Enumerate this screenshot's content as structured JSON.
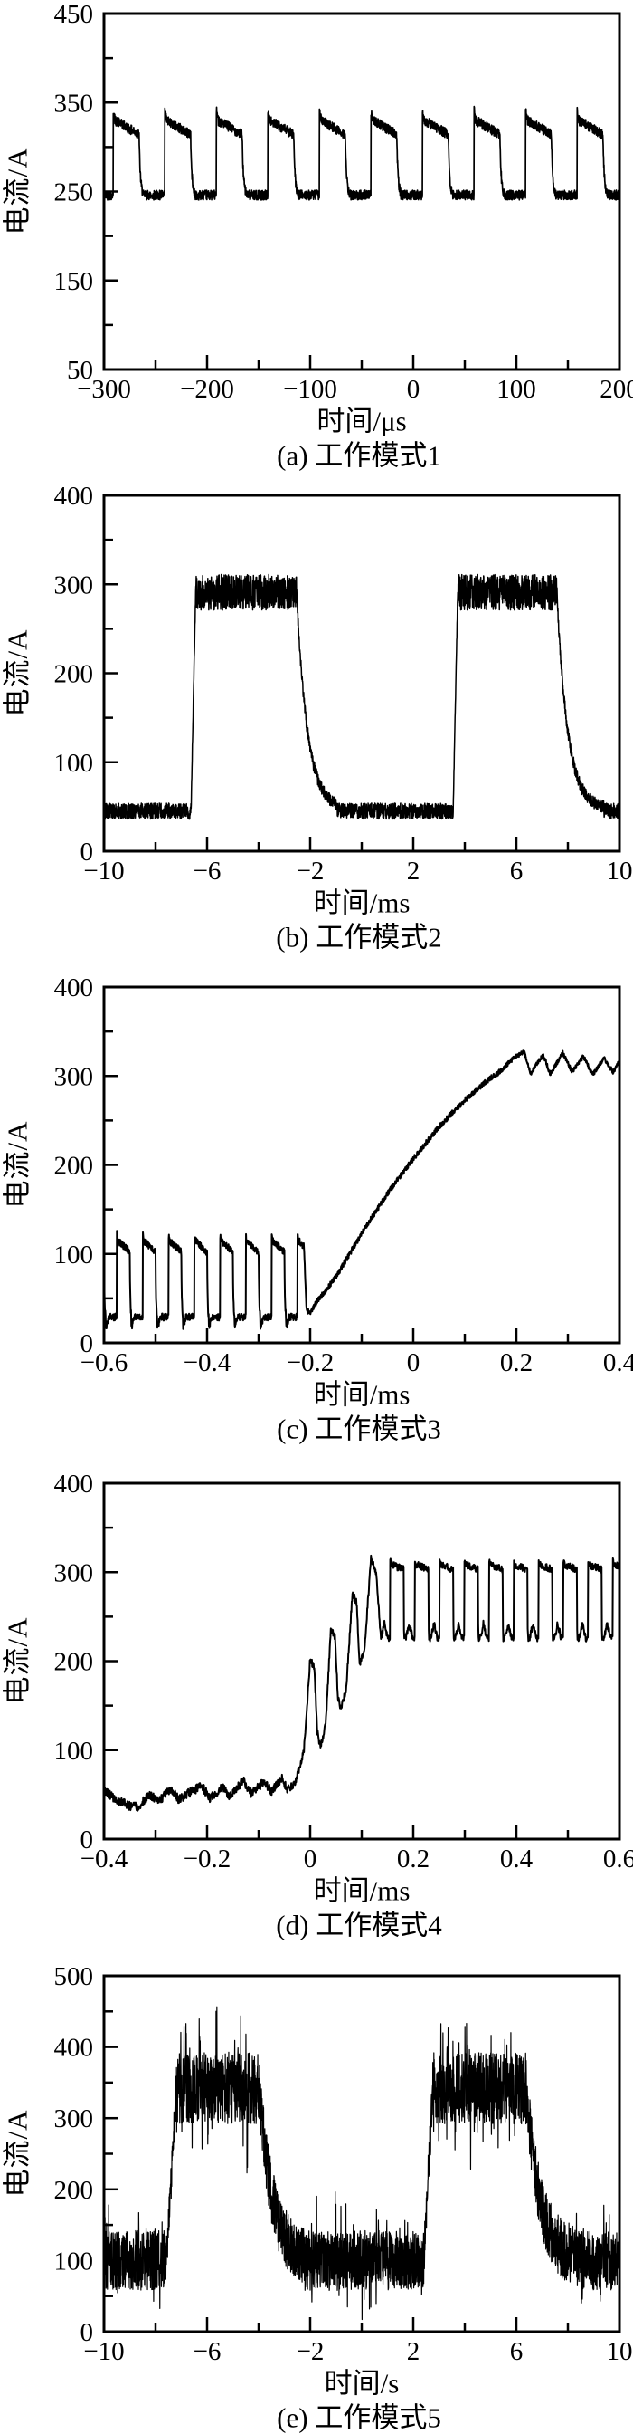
{
  "page": {
    "background": "#ffffff",
    "foreground": "#000000"
  },
  "chart_data": [
    {
      "id": "a",
      "type": "line",
      "caption": "(a) 工作模式1",
      "xlabel": "时间/μs",
      "ylabel": "电流/A",
      "xlim": [
        -300,
        200
      ],
      "ylim": [
        50,
        450
      ],
      "xticks": [
        {
          "v": -300,
          "label": "−300"
        },
        {
          "v": -200,
          "label": "−200"
        },
        {
          "v": -100,
          "label": "−100"
        },
        {
          "v": 0,
          "label": "0"
        },
        {
          "v": 100,
          "label": "100"
        },
        {
          "v": 200,
          "label": "200"
        }
      ],
      "xminor": [
        -250,
        -150,
        -50,
        50,
        150
      ],
      "yticks": [
        {
          "v": 50,
          "label": "50"
        },
        {
          "v": 150,
          "label": "150"
        },
        {
          "v": 250,
          "label": "250"
        },
        {
          "v": 350,
          "label": "350"
        },
        {
          "v": 450,
          "label": "450"
        }
      ],
      "yminor": [
        100,
        200,
        300,
        400
      ],
      "grid": false,
      "legend": null,
      "line_color": "#000000",
      "stroke_width": 1.7,
      "samples": 2600,
      "signal_summary": "periodic square wave: low ~246 A, high ~331 A drooping to ~314 A, period ~50 us, duty ~0.5",
      "segments": [
        {
          "type": "square",
          "t0": -300,
          "t1": 200,
          "anchor": -291,
          "period": 50,
          "duty": 0.5,
          "low": 246,
          "high": 331,
          "droop": 17,
          "overshoot": 10,
          "fall_tail": 0.16,
          "noise": 5.5
        }
      ]
    },
    {
      "id": "b",
      "type": "line",
      "caption": "(b) 工作模式2",
      "xlabel": "时间/ms",
      "ylabel": "电流/A",
      "xlim": [
        -10,
        10
      ],
      "ylim": [
        0,
        400
      ],
      "xticks": [
        {
          "v": -10,
          "label": "−10"
        },
        {
          "v": -6,
          "label": "−6"
        },
        {
          "v": -2,
          "label": "−2"
        },
        {
          "v": 2,
          "label": "2"
        },
        {
          "v": 6,
          "label": "6"
        },
        {
          "v": 10,
          "label": "10"
        }
      ],
      "xminor": [
        -8,
        -4,
        0,
        4,
        8
      ],
      "yticks": [
        {
          "v": 0,
          "label": "0"
        },
        {
          "v": 100,
          "label": "100"
        },
        {
          "v": 200,
          "label": "200"
        },
        {
          "v": 300,
          "label": "300"
        },
        {
          "v": 400,
          "label": "400"
        }
      ],
      "yminor": [
        50,
        150,
        250,
        350
      ],
      "grid": false,
      "legend": null,
      "line_color": "#000000",
      "stroke_width": 1.5,
      "samples": 2800,
      "signal_summary": "pulse train: baseline ~45 A, noisy top ~290 A (265-310 A), rise at -6.6 and 3.6 ms, exponential decay after -2.5 and 7.6 ms",
      "segments": [
        {
          "type": "flat",
          "t0": -10,
          "t1": -6.62,
          "y": 45,
          "noise": 9
        },
        {
          "type": "ramp",
          "t0": -6.62,
          "t1": -6.44,
          "y0": 48,
          "y1": 296,
          "noise": 5
        },
        {
          "type": "flat",
          "t0": -6.44,
          "t1": -2.52,
          "y": 291,
          "noise": 20
        },
        {
          "type": "decay",
          "t0": -2.52,
          "t1": -0.95,
          "y0": 285,
          "y1": 47,
          "tau": 0.42,
          "noise": 7
        },
        {
          "type": "flat",
          "t0": -0.95,
          "t1": 3.55,
          "y": 45,
          "noise": 9
        },
        {
          "type": "ramp",
          "t0": 3.55,
          "t1": 3.73,
          "y0": 48,
          "y1": 296,
          "noise": 5
        },
        {
          "type": "flat",
          "t0": 3.73,
          "t1": 7.58,
          "y": 291,
          "noise": 20
        },
        {
          "type": "decay",
          "t0": 7.58,
          "t1": 9.4,
          "y0": 285,
          "y1": 47,
          "tau": 0.42,
          "noise": 7
        },
        {
          "type": "flat",
          "t0": 9.4,
          "t1": 10,
          "y": 45,
          "noise": 9
        }
      ]
    },
    {
      "id": "c",
      "type": "line",
      "caption": "(c) 工作模式3",
      "xlabel": "时间/ms",
      "ylabel": "电流/A",
      "xlim": [
        -0.6,
        0.4
      ],
      "ylim": [
        0,
        400
      ],
      "xticks": [
        {
          "v": -0.6,
          "label": "−0.6"
        },
        {
          "v": -0.4,
          "label": "−0.4"
        },
        {
          "v": -0.2,
          "label": "−0.2"
        },
        {
          "v": 0,
          "label": "0"
        },
        {
          "v": 0.2,
          "label": "0.2"
        },
        {
          "v": 0.4,
          "label": "0.4"
        }
      ],
      "xminor": [
        -0.5,
        -0.3,
        -0.1,
        0.1,
        0.3
      ],
      "yticks": [
        {
          "v": 0,
          "label": "0"
        },
        {
          "v": 100,
          "label": "100"
        },
        {
          "v": 200,
          "label": "200"
        },
        {
          "v": 300,
          "label": "300"
        },
        {
          "v": 400,
          "label": "400"
        }
      ],
      "yminor": [
        50,
        150,
        250,
        350
      ],
      "grid": false,
      "legend": null,
      "line_color": "#000000",
      "stroke_width": 2,
      "samples": 2000,
      "signal_summary": "square wave 29-116 A (period 0.05 ms) until -0.2 ms, then monotonic rise to ~320 A saturating near 0.2 ms with ~±12 A ripple",
      "segments": [
        {
          "type": "square",
          "t0": -0.6,
          "t1": -0.212,
          "anchor": -0.575,
          "period": 0.05,
          "duty": 0.5,
          "low": 29,
          "high": 116,
          "droop": 14,
          "overshoot": 7,
          "fall_tail": 0.12,
          "low_dip": 13,
          "noise": 4
        },
        {
          "type": "points",
          "t0": -0.212,
          "t1": 0.17,
          "noise": 3,
          "pts": [
            [
              -0.212,
              108
            ],
            [
              -0.207,
              36
            ],
            [
              -0.2,
              34
            ],
            [
              -0.19,
              44
            ],
            [
              -0.15,
              74
            ],
            [
              -0.1,
              123
            ],
            [
              -0.05,
              168
            ],
            [
              0,
              207
            ],
            [
              0.05,
              243
            ],
            [
              0.1,
              273
            ],
            [
              0.14,
              293
            ],
            [
              0.17,
              306
            ]
          ]
        },
        {
          "type": "points",
          "t0": 0.17,
          "t1": 0.4,
          "noise": 2.5,
          "pts": [
            [
              0.17,
              306
            ],
            [
              0.195,
              320
            ],
            [
              0.215,
              327
            ],
            [
              0.228,
              303
            ],
            [
              0.252,
              324
            ],
            [
              0.266,
              302
            ],
            [
              0.29,
              326
            ],
            [
              0.308,
              305
            ],
            [
              0.33,
              322
            ],
            [
              0.348,
              301
            ],
            [
              0.37,
              320
            ],
            [
              0.388,
              304
            ],
            [
              0.4,
              317
            ]
          ]
        }
      ]
    },
    {
      "id": "d",
      "type": "line",
      "caption": "(d) 工作模式4",
      "xlabel": "时间/ms",
      "ylabel": "电流/A",
      "xlim": [
        -0.4,
        0.6
      ],
      "ylim": [
        0,
        400
      ],
      "xticks": [
        {
          "v": -0.4,
          "label": "−0.4"
        },
        {
          "v": -0.2,
          "label": "−0.2"
        },
        {
          "v": 0,
          "label": "0"
        },
        {
          "v": 0.2,
          "label": "0.2"
        },
        {
          "v": 0.4,
          "label": "0.4"
        },
        {
          "v": 0.6,
          "label": "0.6"
        }
      ],
      "xminor": [
        -0.3,
        -0.1,
        0.1,
        0.3,
        0.5
      ],
      "yticks": [
        {
          "v": 0,
          "label": "0"
        },
        {
          "v": 100,
          "label": "100"
        },
        {
          "v": 200,
          "label": "200"
        },
        {
          "v": 300,
          "label": "300"
        },
        {
          "v": 400,
          "label": "400"
        }
      ],
      "yminor": [
        50,
        150,
        250,
        350
      ],
      "grid": false,
      "legend": null,
      "line_color": "#000000",
      "stroke_width": 2,
      "samples": 1500,
      "signal_summary": "noisy ~40-68 A baseline before 0, growing pulses peaking 203/236/276/315 A between 0 and 0.14 ms, then steady oscillation 226-309 A, period ~0.048 ms",
      "segments": [
        {
          "type": "points",
          "t0": -0.4,
          "t1": -0.045,
          "noise": 5,
          "pts": [
            [
              -0.4,
              54
            ],
            [
              -0.38,
              46
            ],
            [
              -0.355,
              38
            ],
            [
              -0.335,
              36
            ],
            [
              -0.31,
              50
            ],
            [
              -0.295,
              42
            ],
            [
              -0.27,
              56
            ],
            [
              -0.255,
              44
            ],
            [
              -0.235,
              52
            ],
            [
              -0.21,
              60
            ],
            [
              -0.195,
              46
            ],
            [
              -0.17,
              58
            ],
            [
              -0.155,
              48
            ],
            [
              -0.13,
              66
            ],
            [
              -0.115,
              52
            ],
            [
              -0.09,
              64
            ],
            [
              -0.075,
              54
            ],
            [
              -0.055,
              68
            ],
            [
              -0.045,
              56
            ]
          ]
        },
        {
          "type": "points",
          "t0": -0.045,
          "t1": 0.137,
          "noise": 4,
          "pts": [
            [
              -0.045,
              56
            ],
            [
              -0.03,
              62
            ],
            [
              -0.022,
              78
            ],
            [
              -0.012,
              100
            ],
            [
              -0.006,
              150
            ],
            [
              0,
              203
            ],
            [
              0.008,
              192
            ],
            [
              0.014,
              120
            ],
            [
              0.02,
              103
            ],
            [
              0.03,
              128
            ],
            [
              0.04,
              236
            ],
            [
              0.048,
              228
            ],
            [
              0.054,
              158
            ],
            [
              0.06,
              146
            ],
            [
              0.07,
              170
            ],
            [
              0.082,
              276
            ],
            [
              0.09,
              266
            ],
            [
              0.096,
              196
            ],
            [
              0.105,
              210
            ],
            [
              0.118,
              315
            ],
            [
              0.128,
              300
            ],
            [
              0.137,
              228
            ]
          ]
        },
        {
          "type": "square",
          "t0": 0.137,
          "t1": 0.6,
          "anchor": 0.155,
          "period": 0.048,
          "duty": 0.55,
          "low": 226,
          "high": 309,
          "droop": 6,
          "overshoot": 7,
          "fall_tail": 0.05,
          "w_bounce": 16,
          "noise": 4
        }
      ]
    },
    {
      "id": "e",
      "type": "line",
      "caption": "(e) 工作模式5",
      "xlabel": "时间/s",
      "ylabel": "电流/A",
      "xlim": [
        -10,
        10
      ],
      "ylim": [
        0,
        500
      ],
      "xticks": [
        {
          "v": -10,
          "label": "−10"
        },
        {
          "v": -6,
          "label": "−6"
        },
        {
          "v": -2,
          "label": "−2"
        },
        {
          "v": 2,
          "label": "2"
        },
        {
          "v": 6,
          "label": "6"
        },
        {
          "v": 10,
          "label": "10"
        }
      ],
      "xminor": [
        -8,
        -4,
        0,
        4,
        8
      ],
      "yticks": [
        {
          "v": 0,
          "label": "0"
        },
        {
          "v": 100,
          "label": "100"
        },
        {
          "v": 200,
          "label": "200"
        },
        {
          "v": 300,
          "label": "300"
        },
        {
          "v": 400,
          "label": "400"
        },
        {
          "v": 500,
          "label": "500"
        }
      ],
      "yminor": [
        50,
        150,
        250,
        350,
        450
      ],
      "grid": false,
      "legend": null,
      "line_color": "#000000",
      "stroke_width": 1.2,
      "samples": 3000,
      "signal_summary": "very noisy square wave: low band ~60-150 A (center ~100 A), high band ~290-430 A (center ~342 A); rises at -7.5 and 2.4 s, decays after -4 and 6.4 s",
      "segments": [
        {
          "type": "flat",
          "t0": -10,
          "t1": -7.55,
          "y": 100,
          "noise": 42,
          "spike_p": 0.1,
          "spike": 1.5
        },
        {
          "type": "ramp",
          "t0": -7.55,
          "t1": -7.2,
          "y0": 110,
          "y1": 335,
          "noise": 32
        },
        {
          "type": "flat",
          "t0": -7.2,
          "t1": -3.95,
          "y": 342,
          "noise": 50,
          "spike_p": 0.12,
          "spike": 1.6
        },
        {
          "type": "decay",
          "t0": -3.95,
          "t1": -2.25,
          "y0": 330,
          "y1": 102,
          "tau": 0.5,
          "noise": 42
        },
        {
          "type": "flat",
          "t0": -2.25,
          "t1": 2.42,
          "y": 100,
          "noise": 42,
          "spike_p": 0.1,
          "spike": 1.5
        },
        {
          "type": "ramp",
          "t0": 2.42,
          "t1": 2.75,
          "y0": 110,
          "y1": 335,
          "noise": 32
        },
        {
          "type": "flat",
          "t0": 2.75,
          "t1": 6.42,
          "y": 342,
          "noise": 50,
          "spike_p": 0.12,
          "spike": 1.6
        },
        {
          "type": "decay",
          "t0": 6.42,
          "t1": 8.3,
          "y0": 330,
          "y1": 102,
          "tau": 0.5,
          "noise": 42
        },
        {
          "type": "flat",
          "t0": 8.3,
          "t1": 10,
          "y": 100,
          "noise": 42,
          "spike_p": 0.1,
          "spike": 1.5
        }
      ]
    }
  ]
}
